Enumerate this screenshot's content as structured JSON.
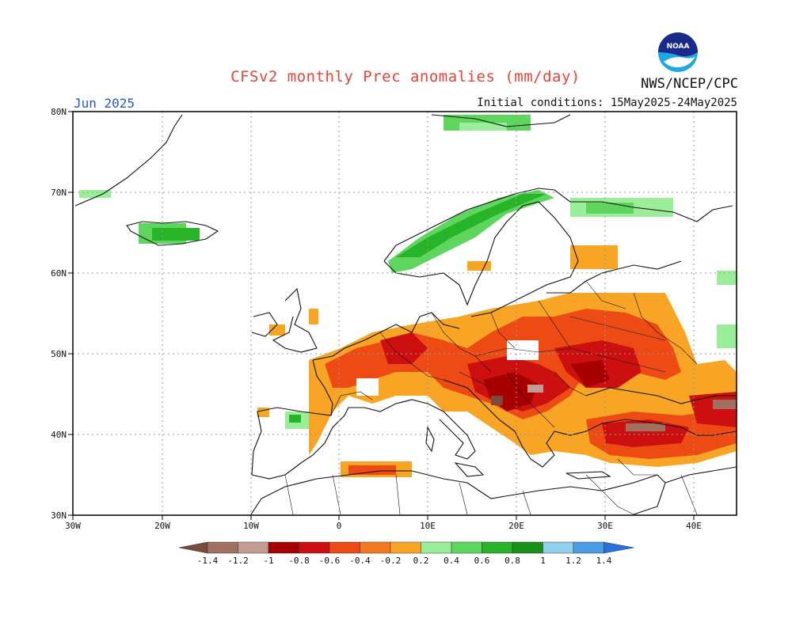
{
  "header": {
    "title": "CFSv2 monthly Prec anomalies (mm/day)",
    "agency": "NWS/NCEP/CPC",
    "month": "Jun 2025",
    "initial_conditions": "Initial conditions: 15May2025-24May2025",
    "logo_text": "NOAA"
  },
  "map": {
    "lat_labels": [
      "80N",
      "70N",
      "60N",
      "50N",
      "40N",
      "30N"
    ],
    "lon_labels": [
      "30W",
      "20W",
      "10W",
      "0",
      "10E",
      "20E",
      "30E",
      "40E"
    ],
    "grid": true,
    "anomaly_regions": [
      {
        "name": "iberia-france-dry",
        "class": "-0.4"
      },
      {
        "name": "central-europe-dry",
        "class": "-0.6"
      },
      {
        "name": "balkans-dry",
        "class": "-0.8"
      },
      {
        "name": "turkey-dry",
        "class": "-1"
      },
      {
        "name": "scandinavia-wet",
        "class": "0.4"
      },
      {
        "name": "iceland-wet",
        "class": "0.6"
      }
    ]
  },
  "colorbar": {
    "labels": [
      "-1.4",
      "-1.2",
      "-1",
      "-0.8",
      "-0.6",
      "-0.4",
      "-0.2",
      "0.2",
      "0.4",
      "0.6",
      "0.8",
      "1",
      "1.2",
      "1.4"
    ],
    "colors": [
      "#7a4a3a",
      "#a07060",
      "#c09c94",
      "#a80000",
      "#cc1010",
      "#ee4a14",
      "#f47820",
      "#f8a424",
      "#9aee9a",
      "#5ed65e",
      "#28b428",
      "#189018",
      "#92d0f0",
      "#4a9ee8",
      "#2a70e0"
    ]
  }
}
